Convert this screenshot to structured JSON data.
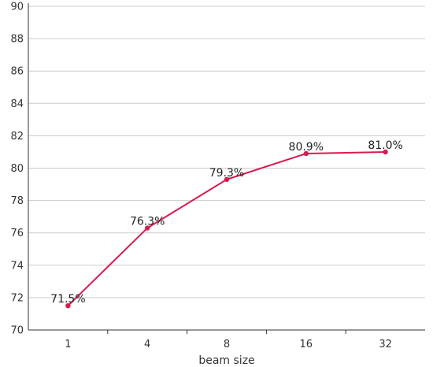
{
  "chart_data": {
    "type": "line",
    "categories": [
      "1",
      "4",
      "8",
      "16",
      "32"
    ],
    "series": [
      {
        "values": [
          71.5,
          76.3,
          79.3,
          80.9,
          81.0
        ],
        "data_labels": [
          "71.5%",
          "76.3%",
          "79.3%",
          "80.9%",
          "81.0%"
        ],
        "color": "#d81b50"
      }
    ],
    "xlabel": "beam size",
    "ylabel": "",
    "ylim": [
      70,
      90
    ],
    "yticks": [
      "70",
      "72",
      "74",
      "76",
      "78",
      "80",
      "82",
      "84",
      "86",
      "88",
      "90"
    ],
    "grid": true,
    "grid_color": "#cccccc"
  }
}
